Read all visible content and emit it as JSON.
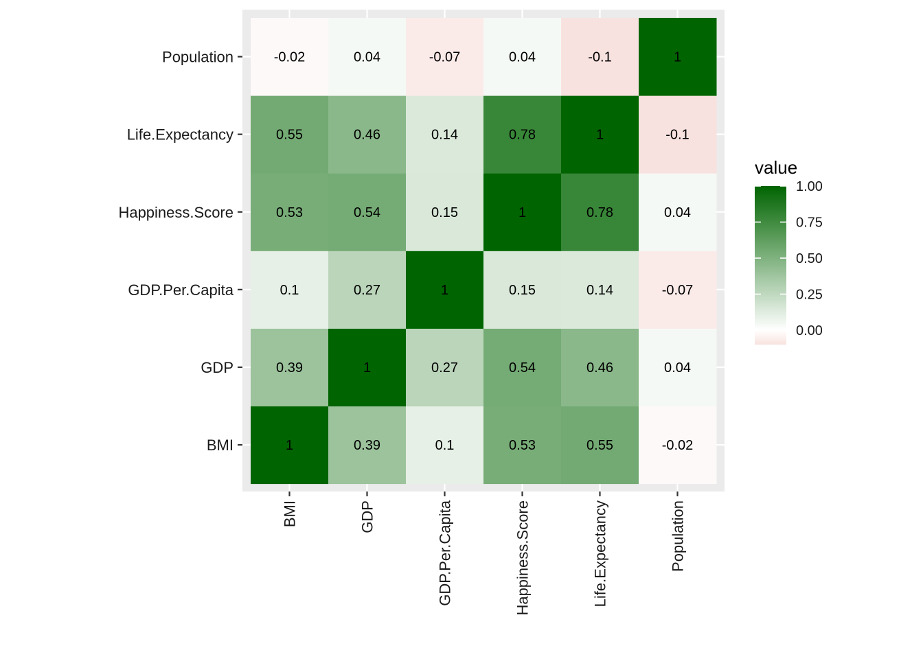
{
  "chart_data": {
    "type": "heatmap",
    "x_categories": [
      "BMI",
      "GDP",
      "GDP.Per.Capita",
      "Happiness.Score",
      "Life.Expectancy",
      "Population"
    ],
    "y_categories": [
      "BMI",
      "GDP",
      "GDP.Per.Capita",
      "Happiness.Score",
      "Life.Expectancy",
      "Population"
    ],
    "values": [
      [
        1,
        0.39,
        0.1,
        0.53,
        0.55,
        -0.02
      ],
      [
        0.39,
        1,
        0.27,
        0.54,
        0.46,
        0.04
      ],
      [
        0.1,
        0.27,
        1,
        0.15,
        0.14,
        -0.07
      ],
      [
        0.53,
        0.54,
        0.15,
        1,
        0.78,
        0.04
      ],
      [
        0.55,
        0.46,
        0.14,
        0.78,
        1,
        -0.1
      ],
      [
        -0.02,
        0.04,
        -0.07,
        0.04,
        -0.1,
        1
      ]
    ],
    "cell_labels": [
      [
        "1",
        "0.39",
        "0.1",
        "0.53",
        "0.55",
        "-0.02"
      ],
      [
        "0.39",
        "1",
        "0.27",
        "0.54",
        "0.46",
        "0.04"
      ],
      [
        "0.1",
        "0.27",
        "1",
        "0.15",
        "0.14",
        "-0.07"
      ],
      [
        "0.53",
        "0.54",
        "0.15",
        "1",
        "0.78",
        "0.04"
      ],
      [
        "0.55",
        "0.46",
        "0.14",
        "0.78",
        "1",
        "-0.1"
      ],
      [
        "-0.02",
        "0.04",
        "-0.07",
        "0.04",
        "-0.1",
        "1"
      ]
    ],
    "legend": {
      "title": "value",
      "placement": "right",
      "limits": [
        -0.1,
        1
      ],
      "breaks": [
        0,
        0.25,
        0.5,
        0.75,
        1
      ],
      "break_labels": [
        "0.00",
        "0.25",
        "0.50",
        "0.75",
        "1.00"
      ]
    },
    "colors": {
      "low": "#f8e2df",
      "mid": "#ffffff",
      "high": "#006400",
      "panel_background": "#ebebeb",
      "gridline": "#ffffff"
    },
    "xlabel": "",
    "ylabel": "",
    "title": ""
  }
}
